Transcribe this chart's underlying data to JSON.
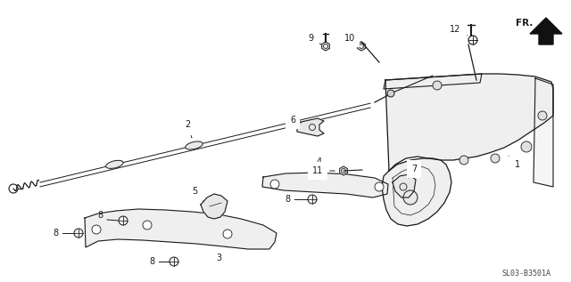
{
  "bg_color": "#ffffff",
  "line_color": "#1a1a1a",
  "text_color": "#1a1a1a",
  "diagram_code": "SL03-B3501A",
  "label_fontsize": 7,
  "code_fontsize": 6
}
